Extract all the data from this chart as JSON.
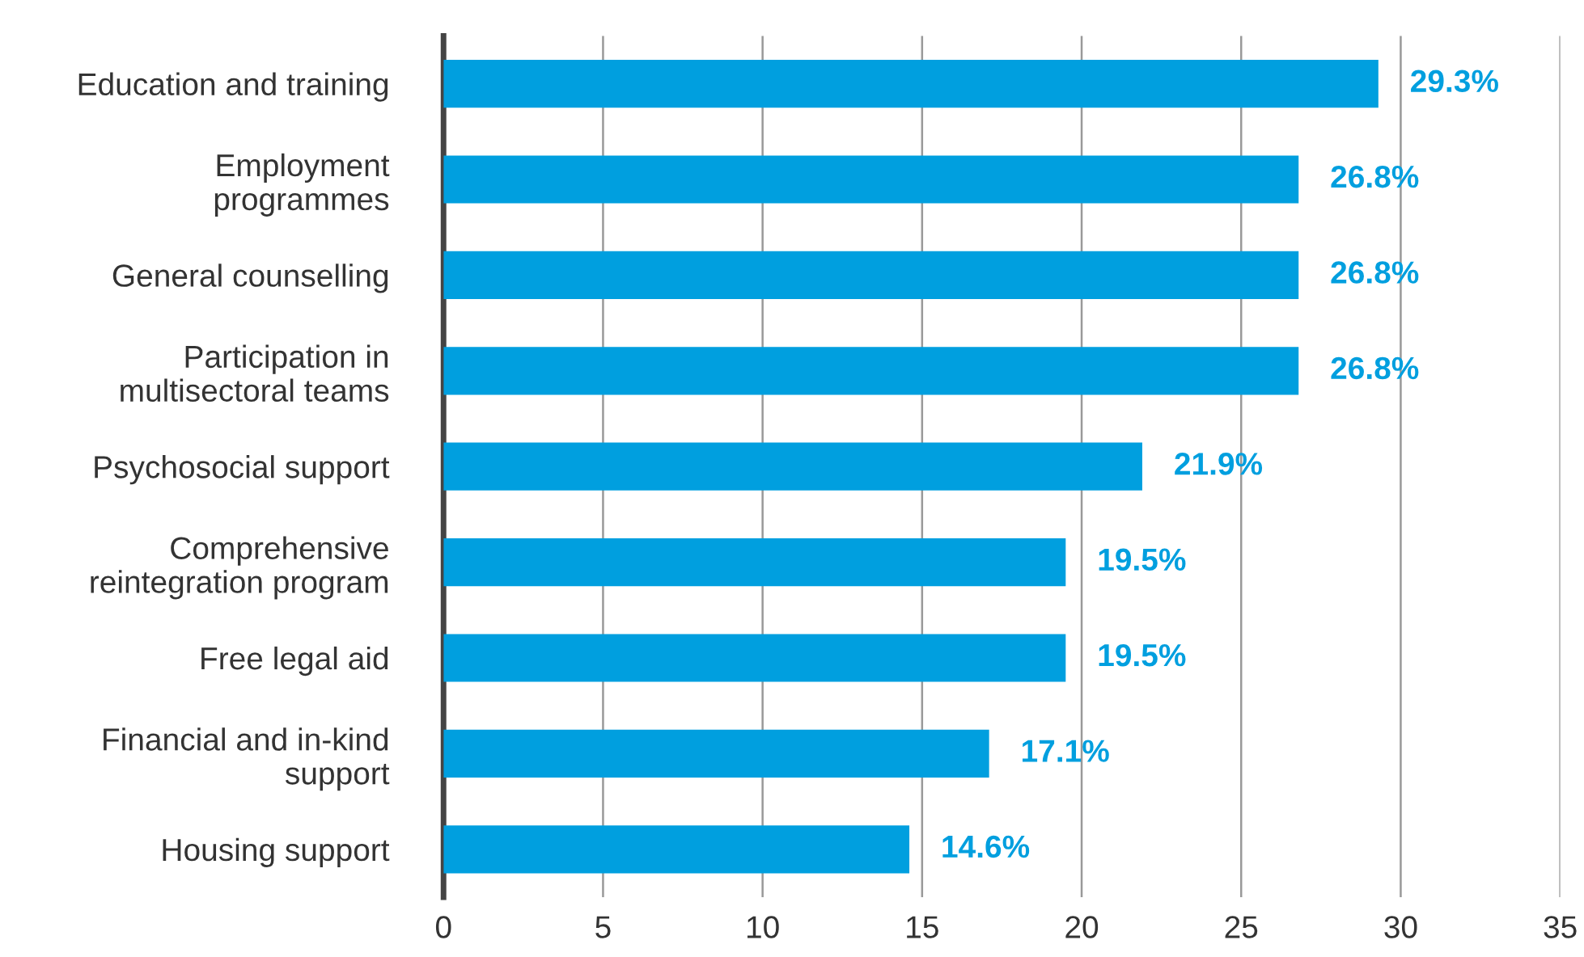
{
  "chart_data": {
    "type": "bar",
    "orientation": "horizontal",
    "categories": [
      "Education and training",
      "Employment\nprogrammes",
      "General counselling",
      "Participation in\nmultisectoral teams",
      "Psychosocial support",
      "Comprehensive\nreintegration program",
      "Free legal aid",
      "Financial and in-kind\nsupport",
      "Housing support"
    ],
    "values": [
      29.3,
      26.8,
      26.8,
      26.8,
      21.9,
      19.5,
      19.5,
      17.1,
      14.6
    ],
    "value_labels": [
      "29.3%",
      "26.8%",
      "26.8%",
      "26.8%",
      "21.9%",
      "19.5%",
      "19.5%",
      "17.1%",
      "14.6%"
    ],
    "color": "#009fdf",
    "xlim": [
      0,
      35
    ],
    "xticks": [
      0,
      5,
      10,
      15,
      20,
      25,
      30,
      35
    ],
    "grid": "x",
    "legend": false
  }
}
